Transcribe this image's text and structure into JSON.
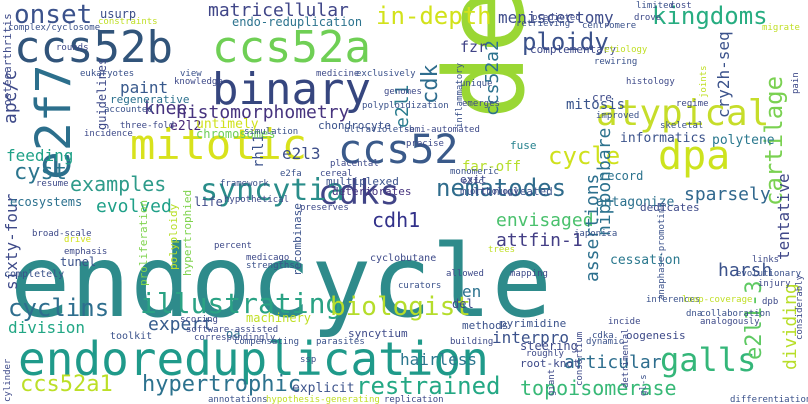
{
  "words": [
    {
      "text": "endocycle",
      "color": "#2e8b8b"
    },
    {
      "text": "del1",
      "color": "#9ad734"
    },
    {
      "text": "endoreduplication",
      "color": "#1f9a8a"
    },
    {
      "text": "ccs52b",
      "color": "#31547a"
    },
    {
      "text": "ccs52a",
      "color": "#6fcf55"
    },
    {
      "text": "binary",
      "color": "#36467f"
    },
    {
      "text": "e2f7",
      "color": "#2c6f8c"
    },
    {
      "text": "mitotic",
      "color": "#d8e21c"
    },
    {
      "text": "ccs52",
      "color": "#3a5a8a"
    },
    {
      "text": "dpa",
      "color": "#cde31e"
    },
    {
      "text": "atypical",
      "color": "#c6dd2a"
    },
    {
      "text": "galls",
      "color": "#34b679"
    },
    {
      "text": "cdks",
      "color": "#414487"
    },
    {
      "text": "syncytia",
      "color": "#2a8d8a"
    },
    {
      "text": "nematodes",
      "color": "#2f6c8c"
    },
    {
      "text": "illustrating",
      "color": "#2aa284"
    },
    {
      "text": "biologist",
      "color": "#b5dd2b"
    },
    {
      "text": "restrained",
      "color": "#24a884"
    },
    {
      "text": "hypertrophic",
      "color": "#2c728e"
    },
    {
      "text": "ccs52a1",
      "color": "#bcdf27"
    },
    {
      "text": "onset",
      "color": "#3b528b"
    },
    {
      "text": "in-depth",
      "color": "#d2e21b"
    },
    {
      "text": "kingdoms",
      "color": "#27ad81"
    },
    {
      "text": "ploidy",
      "color": "#3b528b"
    },
    {
      "text": "cycle",
      "color": "#cfe11c"
    },
    {
      "text": "cartilage",
      "color": "#7ad151"
    },
    {
      "text": "examples",
      "color": "#2e9b8a"
    },
    {
      "text": "cyst",
      "color": "#2b758e"
    },
    {
      "text": "cdh1",
      "color": "#32318a"
    },
    {
      "text": "cyclins",
      "color": "#2e6e8e"
    },
    {
      "text": "e2l1-3",
      "color": "#5ec962"
    },
    {
      "text": "topoisomerase",
      "color": "#38b977"
    },
    {
      "text": "matricellular",
      "color": "#404688"
    },
    {
      "text": "histomorphometry",
      "color": "#46337e"
    },
    {
      "text": "meniscectomy",
      "color": "#3e4c8a"
    },
    {
      "text": "ccs52a2",
      "color": "#2c728e"
    },
    {
      "text": "cdk",
      "color": "#2e6d8e"
    },
    {
      "text": "e2l1",
      "color": "#287c8e"
    },
    {
      "text": "nipponbare",
      "color": "#2c728e"
    },
    {
      "text": "cry2h-seq",
      "color": "#3b528b"
    },
    {
      "text": "apc/c",
      "color": "#3e4a89"
    },
    {
      "text": "knee",
      "color": "#46327e"
    },
    {
      "text": "paint",
      "color": "#38598c"
    },
    {
      "text": "feeding",
      "color": "#1fa187"
    },
    {
      "text": "evolved",
      "color": "#1fa088"
    },
    {
      "text": "expert",
      "color": "#365c8d"
    },
    {
      "text": "division",
      "color": "#22a785"
    },
    {
      "text": "sixty-four",
      "color": "#3e4a89"
    },
    {
      "text": "envisaged",
      "color": "#4ac16d"
    },
    {
      "text": "attfin-1",
      "color": "#433e85"
    },
    {
      "text": "sparsely",
      "color": "#31688e"
    },
    {
      "text": "harsh",
      "color": "#3b528b"
    },
    {
      "text": "assertions",
      "color": "#2d708e"
    },
    {
      "text": "tentative",
      "color": "#3f4788"
    },
    {
      "text": "dividing",
      "color": "#b8de29"
    },
    {
      "text": "articular",
      "color": "#2e6e8e"
    },
    {
      "text": "interpro",
      "color": "#3b528b"
    },
    {
      "text": "hairless",
      "color": "#2a768e"
    },
    {
      "text": "e2l3",
      "color": "#3d4e8a"
    },
    {
      "text": "e2l2",
      "color": "#482878"
    },
    {
      "text": "fzr",
      "color": "#404387"
    },
    {
      "text": "mitosis",
      "color": "#3a548c"
    },
    {
      "text": "informatics",
      "color": "#3b528b"
    },
    {
      "text": "polytene",
      "color": "#2a788e"
    },
    {
      "text": "record",
      "color": "#2c738e"
    },
    {
      "text": "cessation",
      "color": "#2a788e"
    },
    {
      "text": "en",
      "color": "#2c728e"
    },
    {
      "text": "rhl1",
      "color": "#3b528b"
    },
    {
      "text": "untimely",
      "color": "#d0e11c"
    },
    {
      "text": "chromosomes",
      "color": "#6ece58"
    },
    {
      "text": "usurp",
      "color": "#3c4f8a"
    },
    {
      "text": "endo-reduplication",
      "color": "#2c738e"
    },
    {
      "text": "complementary",
      "color": "#3e4989"
    },
    {
      "text": "far-off",
      "color": "#b5de2b"
    },
    {
      "text": "fuse",
      "color": "#26828e"
    },
    {
      "text": "multinucleated",
      "color": "#3b528b"
    },
    {
      "text": "exit",
      "color": "#3e4a89"
    },
    {
      "text": "deteriorates",
      "color": "#46337e"
    },
    {
      "text": "multiplexed",
      "color": "#3b528b"
    },
    {
      "text": "antagonize",
      "color": "#2c718e"
    },
    {
      "text": "dedicates",
      "color": "#3e4a89"
    },
    {
      "text": "ecosystems",
      "color": "#2c718e"
    },
    {
      "text": "life",
      "color": "#3e4a89"
    },
    {
      "text": "guidelines",
      "color": "#3e4a89"
    },
    {
      "text": "regenerative",
      "color": "#2c718e"
    },
    {
      "text": "machinery",
      "color": "#c0df25"
    },
    {
      "text": "expert",
      "color": "#365c8d"
    },
    {
      "text": "oa",
      "color": "#2c718e"
    },
    {
      "text": "syncytium",
      "color": "#3e4a89"
    },
    {
      "text": "explicit",
      "color": "#3b528b"
    },
    {
      "text": "tunel",
      "color": "#3b528b"
    },
    {
      "text": "proliferation",
      "color": "#7fd34e"
    },
    {
      "text": "polyploidy",
      "color": "#b8de29"
    },
    {
      "text": "hypertrophied",
      "color": "#7fd34e"
    },
    {
      "text": "chondrocyte",
      "color": "#3b528b"
    },
    {
      "text": "osteoarthritis",
      "color": "#3e4a89"
    },
    {
      "text": "del",
      "color": "#3e4a89"
    },
    {
      "text": "steering",
      "color": "#3e4a89"
    },
    {
      "text": "methods",
      "color": "#3b528b"
    },
    {
      "text": "root-knot",
      "color": "#3e4a89"
    },
    {
      "text": "recombinase",
      "color": "#3b528b"
    },
    {
      "text": "oogenesis",
      "color": "#3e4a89"
    },
    {
      "text": "pyrimidine",
      "color": "#3b528b"
    },
    {
      "text": "toolkit",
      "color": "#3b528b"
    },
    {
      "text": "cyclobutane",
      "color": "#3e4a89"
    },
    {
      "text": "completely",
      "color": "#3b528b"
    },
    {
      "text": "broad-scale",
      "color": "#3e4a89"
    },
    {
      "text": "emphasis",
      "color": "#3e4a89"
    },
    {
      "text": "drive",
      "color": "#d2e21b"
    },
    {
      "text": "percent",
      "color": "#3e4a89"
    },
    {
      "text": "medicago",
      "color": "#3e4a89"
    },
    {
      "text": "strengths",
      "color": "#3b528b"
    },
    {
      "text": "software-assisted",
      "color": "#3e4a89"
    },
    {
      "text": "correspondingly",
      "color": "#3e4a89"
    },
    {
      "text": "compensating",
      "color": "#3b528b"
    },
    {
      "text": "parasites",
      "color": "#3b528b"
    },
    {
      "text": "building",
      "color": "#3e4a89"
    },
    {
      "text": "roughly",
      "color": "#3e4a89"
    },
    {
      "text": "ssp",
      "color": "#3b528b"
    },
    {
      "text": "cylinder",
      "color": "#3e4a89"
    },
    {
      "text": "annotations",
      "color": "#3b528b"
    },
    {
      "text": "hypothesis-generating",
      "color": "#c0df25"
    },
    {
      "text": "replication",
      "color": "#3e4a89"
    },
    {
      "text": "differentiation",
      "color": "#3b528b"
    },
    {
      "text": "injury",
      "color": "#3e4a89"
    },
    {
      "text": "links",
      "color": "#3e4a89"
    },
    {
      "text": "inferences",
      "color": "#3b528b"
    },
    {
      "text": "loop-coverage",
      "color": "#c0df25"
    },
    {
      "text": "dpb",
      "color": "#3e4a89"
    },
    {
      "text": "collaboration",
      "color": "#3b528b"
    },
    {
      "text": "analogously",
      "color": "#3e4a89"
    },
    {
      "text": "dna",
      "color": "#3b528b"
    },
    {
      "text": "incide",
      "color": "#3e4a89"
    },
    {
      "text": "cdka",
      "color": "#3b528b"
    },
    {
      "text": "mapping",
      "color": "#3e4a89"
    },
    {
      "text": "curators",
      "color": "#3b528b"
    },
    {
      "text": "allowed",
      "color": "#3e4a89"
    },
    {
      "text": "orthology",
      "color": "#3e4a89"
    },
    {
      "text": "japonica",
      "color": "#3b528b"
    },
    {
      "text": "preserves",
      "color": "#3e4a89"
    },
    {
      "text": "hypothetical",
      "color": "#3e4a89"
    },
    {
      "text": "framework",
      "color": "#3b528b"
    },
    {
      "text": "placental",
      "color": "#3e4a89"
    },
    {
      "text": "monomeric",
      "color": "#3b528b"
    },
    {
      "text": "cereal",
      "color": "#3e4a89"
    },
    {
      "text": "e2fa",
      "color": "#3b528b"
    },
    {
      "text": "e2fc",
      "color": "#3e4a89"
    },
    {
      "text": "resume",
      "color": "#3e4a89"
    },
    {
      "text": "ultraviolet-b",
      "color": "#3b528b"
    },
    {
      "text": "precise",
      "color": "#3e4a89"
    },
    {
      "text": "simulation",
      "color": "#3b528b"
    },
    {
      "text": "three-fold",
      "color": "#3e4a89"
    },
    {
      "text": "accounted",
      "color": "#3b528b"
    },
    {
      "text": "incidence",
      "color": "#3e4a89"
    },
    {
      "text": "view",
      "color": "#3b528b"
    },
    {
      "text": "knowledge",
      "color": "#3e4a89"
    },
    {
      "text": "eukaryotes",
      "color": "#3b528b"
    },
    {
      "text": "rounds",
      "color": "#3e4a89"
    },
    {
      "text": "complex/cyclosome",
      "color": "#3b528b"
    },
    {
      "text": "constraints",
      "color": "#c0df25"
    },
    {
      "text": "medicine",
      "color": "#3e4a89"
    },
    {
      "text": "exclusively",
      "color": "#3b528b"
    },
    {
      "text": "genomes",
      "color": "#3e4a89"
    },
    {
      "text": "polyploidization",
      "color": "#3b528b"
    },
    {
      "text": "semi-automated",
      "color": "#3e4a89"
    },
    {
      "text": "inflammatory",
      "color": "#3b528b"
    },
    {
      "text": "emerges",
      "color": "#3e4a89"
    },
    {
      "text": "unique",
      "color": "#3b528b"
    },
    {
      "text": "cre",
      "color": "#3e4a89"
    },
    {
      "text": "improved",
      "color": "#3b528b"
    },
    {
      "text": "histology",
      "color": "#3e4a89"
    },
    {
      "text": "rewiring",
      "color": "#3b528b"
    },
    {
      "text": "etiology",
      "color": "#c0df25"
    },
    {
      "text": "regime",
      "color": "#3e4a89"
    },
    {
      "text": "skeletal",
      "color": "#3b528b"
    },
    {
      "text": "joints",
      "color": "#c0df25"
    },
    {
      "text": "pain",
      "color": "#3e4a89"
    },
    {
      "text": "retrieving",
      "color": "#3b528b"
    },
    {
      "text": "predicted",
      "color": "#3e4a89"
    },
    {
      "text": "centromere",
      "color": "#3b528b"
    },
    {
      "text": "drove",
      "color": "#3e4a89"
    },
    {
      "text": "limited",
      "color": "#3b528b"
    },
    {
      "text": "cost",
      "color": "#3e4a89"
    },
    {
      "text": "migrate",
      "color": "#c0df25"
    },
    {
      "text": "evolutionary",
      "color": "#3b528b"
    },
    {
      "text": "considerably",
      "color": "#3e4a89"
    },
    {
      "text": "anaphase-promoting",
      "color": "#3b528b"
    },
    {
      "text": "consortium",
      "color": "#3e4a89"
    },
    {
      "text": "trees",
      "color": "#c0df25"
    },
    {
      "text": "detrimental",
      "color": "#3e4a89"
    },
    {
      "text": "dynamic",
      "color": "#3b528b"
    },
    {
      "text": "giant",
      "color": "#3e4a89"
    },
    {
      "text": "gl-s",
      "color": "#3b528b"
    },
    {
      "text": "scoring",
      "color": "#3e4a89"
    }
  ]
}
